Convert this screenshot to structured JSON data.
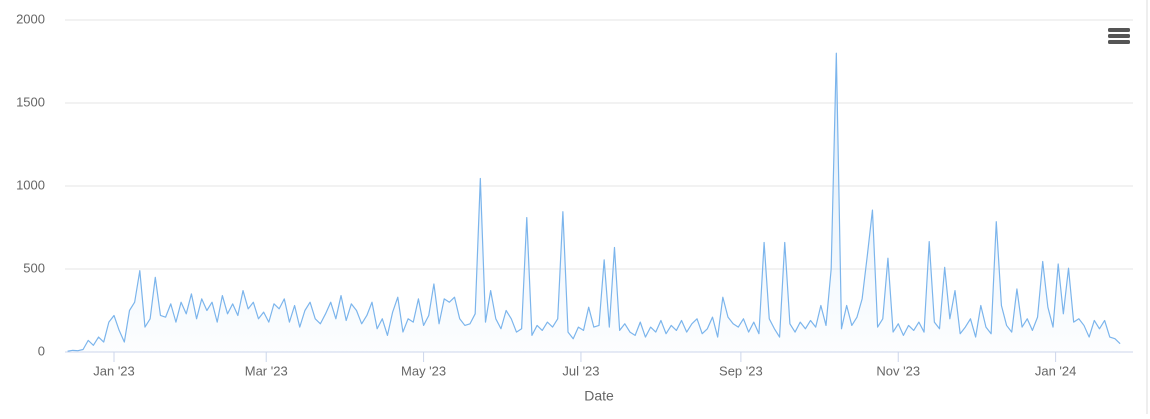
{
  "chart_data": {
    "type": "line",
    "xlabel": "Date",
    "color": "#7cb5ec",
    "grid": true,
    "xlim": [
      -19,
      395
    ],
    "xticks": [
      {
        "value": 0,
        "label": "Jan '23"
      },
      {
        "value": 59,
        "label": "Mar '23"
      },
      {
        "value": 120,
        "label": "May '23"
      },
      {
        "value": 181,
        "label": "Jul '23"
      },
      {
        "value": 243,
        "label": "Sep '23"
      },
      {
        "value": 304,
        "label": "Nov '23"
      },
      {
        "value": 365,
        "label": "Jan '24"
      }
    ],
    "ylim": [
      0,
      2000
    ],
    "yticks": [
      0,
      500,
      1000,
      1500,
      2000
    ],
    "x": [
      -18,
      -16,
      -14,
      -12,
      -10,
      -8,
      -6,
      -4,
      -2,
      0,
      2,
      4,
      6,
      8,
      10,
      12,
      14,
      16,
      18,
      20,
      22,
      24,
      26,
      28,
      30,
      32,
      34,
      36,
      38,
      40,
      42,
      44,
      46,
      48,
      50,
      52,
      54,
      56,
      58,
      60,
      62,
      64,
      66,
      68,
      70,
      72,
      74,
      76,
      78,
      80,
      82,
      84,
      86,
      88,
      90,
      92,
      94,
      96,
      98,
      100,
      102,
      104,
      106,
      108,
      110,
      112,
      114,
      116,
      118,
      120,
      122,
      124,
      126,
      128,
      130,
      132,
      134,
      136,
      138,
      140,
      142,
      144,
      146,
      148,
      150,
      152,
      154,
      156,
      158,
      160,
      162,
      164,
      166,
      168,
      170,
      172,
      174,
      176,
      178,
      180,
      182,
      184,
      186,
      188,
      190,
      192,
      194,
      196,
      198,
      200,
      202,
      204,
      206,
      208,
      210,
      212,
      214,
      216,
      218,
      220,
      222,
      224,
      226,
      228,
      230,
      232,
      234,
      236,
      238,
      240,
      242,
      244,
      246,
      248,
      250,
      252,
      254,
      256,
      258,
      260,
      262,
      264,
      266,
      268,
      270,
      272,
      274,
      276,
      278,
      280,
      282,
      284,
      286,
      288,
      290,
      292,
      294,
      296,
      298,
      300,
      302,
      304,
      306,
      308,
      310,
      312,
      314,
      316,
      318,
      320,
      322,
      324,
      326,
      328,
      330,
      332,
      334,
      336,
      338,
      340,
      342,
      344,
      346,
      348,
      350,
      352,
      354,
      356,
      358,
      360,
      362,
      364,
      366,
      368,
      370,
      372,
      374,
      376,
      378,
      380,
      382,
      384,
      386,
      388,
      390
    ],
    "values": [
      5,
      10,
      8,
      15,
      70,
      40,
      90,
      60,
      180,
      220,
      130,
      60,
      250,
      300,
      490,
      150,
      200,
      450,
      220,
      210,
      290,
      180,
      300,
      230,
      350,
      200,
      320,
      250,
      300,
      180,
      340,
      230,
      290,
      220,
      370,
      260,
      300,
      200,
      240,
      180,
      290,
      260,
      320,
      180,
      280,
      150,
      250,
      300,
      200,
      170,
      230,
      300,
      200,
      340,
      190,
      290,
      250,
      170,
      220,
      300,
      140,
      200,
      100,
      240,
      330,
      120,
      200,
      180,
      320,
      160,
      220,
      410,
      170,
      320,
      300,
      330,
      200,
      160,
      170,
      230,
      1045,
      180,
      370,
      200,
      140,
      250,
      200,
      120,
      140,
      810,
      100,
      160,
      130,
      180,
      150,
      200,
      845,
      120,
      80,
      150,
      130,
      270,
      150,
      160,
      555,
      150,
      630,
      130,
      170,
      120,
      100,
      180,
      90,
      150,
      120,
      190,
      110,
      160,
      130,
      190,
      120,
      170,
      200,
      110,
      140,
      210,
      90,
      330,
      210,
      170,
      150,
      200,
      120,
      180,
      110,
      660,
      200,
      140,
      90,
      660,
      170,
      120,
      180,
      140,
      190,
      150,
      280,
      160,
      500,
      1800,
      140,
      280,
      160,
      210,
      320,
      580,
      855,
      150,
      200,
      565,
      120,
      170,
      100,
      160,
      130,
      180,
      120,
      665,
      180,
      140,
      510,
      200,
      370,
      110,
      150,
      200,
      90,
      280,
      150,
      110,
      785,
      280,
      160,
      120,
      380,
      150,
      200,
      130,
      210,
      545,
      270,
      150,
      530,
      230,
      505,
      180,
      200,
      160,
      90,
      190,
      140,
      190,
      90,
      80,
      50
    ]
  }
}
